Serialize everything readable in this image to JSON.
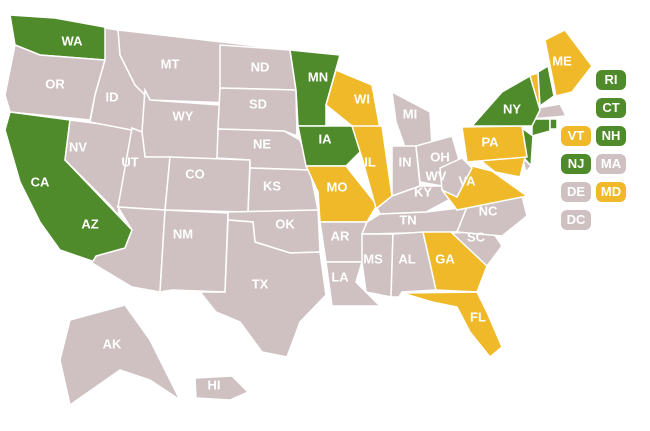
{
  "colors": {
    "green": "#4f8a2b",
    "gold": "#f0b929",
    "gray": "#cfc1c1",
    "border": "#ffffff"
  },
  "states": [
    {
      "abbr": "WA",
      "status": "green"
    },
    {
      "abbr": "OR",
      "status": "gray"
    },
    {
      "abbr": "CA",
      "status": "green"
    },
    {
      "abbr": "NV",
      "status": "gray"
    },
    {
      "abbr": "ID",
      "status": "gray"
    },
    {
      "abbr": "MT",
      "status": "gray"
    },
    {
      "abbr": "WY",
      "status": "gray"
    },
    {
      "abbr": "UT",
      "status": "gray"
    },
    {
      "abbr": "CO",
      "status": "gray"
    },
    {
      "abbr": "AZ",
      "status": "gray"
    },
    {
      "abbr": "NM",
      "status": "gray"
    },
    {
      "abbr": "ND",
      "status": "gray"
    },
    {
      "abbr": "SD",
      "status": "gray"
    },
    {
      "abbr": "NE",
      "status": "gray"
    },
    {
      "abbr": "KS",
      "status": "gray"
    },
    {
      "abbr": "OK",
      "status": "gray"
    },
    {
      "abbr": "TX",
      "status": "gray"
    },
    {
      "abbr": "MN",
      "status": "green"
    },
    {
      "abbr": "IA",
      "status": "green"
    },
    {
      "abbr": "MO",
      "status": "gold"
    },
    {
      "abbr": "AR",
      "status": "gray"
    },
    {
      "abbr": "LA",
      "status": "gray"
    },
    {
      "abbr": "WI",
      "status": "gold"
    },
    {
      "abbr": "IL",
      "status": "gold"
    },
    {
      "abbr": "MI",
      "status": "gray"
    },
    {
      "abbr": "IN",
      "status": "gray"
    },
    {
      "abbr": "OH",
      "status": "gray"
    },
    {
      "abbr": "KY",
      "status": "gray"
    },
    {
      "abbr": "TN",
      "status": "gray"
    },
    {
      "abbr": "MS",
      "status": "gray"
    },
    {
      "abbr": "AL",
      "status": "gray"
    },
    {
      "abbr": "GA",
      "status": "gold"
    },
    {
      "abbr": "FL",
      "status": "gold"
    },
    {
      "abbr": "SC",
      "status": "gray"
    },
    {
      "abbr": "NC",
      "status": "gray"
    },
    {
      "abbr": "VA",
      "status": "gold"
    },
    {
      "abbr": "WV",
      "status": "gray"
    },
    {
      "abbr": "PA",
      "status": "gold"
    },
    {
      "abbr": "NY",
      "status": "green"
    },
    {
      "abbr": "ME",
      "status": "gold"
    },
    {
      "abbr": "AK",
      "status": "gray"
    },
    {
      "abbr": "HI",
      "status": "gray"
    }
  ],
  "small_states": [
    {
      "abbr": "RI",
      "status": "green"
    },
    {
      "abbr": "CT",
      "status": "green"
    },
    {
      "abbr": "VT",
      "status": "gold"
    },
    {
      "abbr": "NH",
      "status": "green"
    },
    {
      "abbr": "NJ",
      "status": "green"
    },
    {
      "abbr": "MA",
      "status": "gray"
    },
    {
      "abbr": "DE",
      "status": "gray"
    },
    {
      "abbr": "MD",
      "status": "gold"
    },
    {
      "abbr": "DC",
      "status": "gray"
    }
  ]
}
